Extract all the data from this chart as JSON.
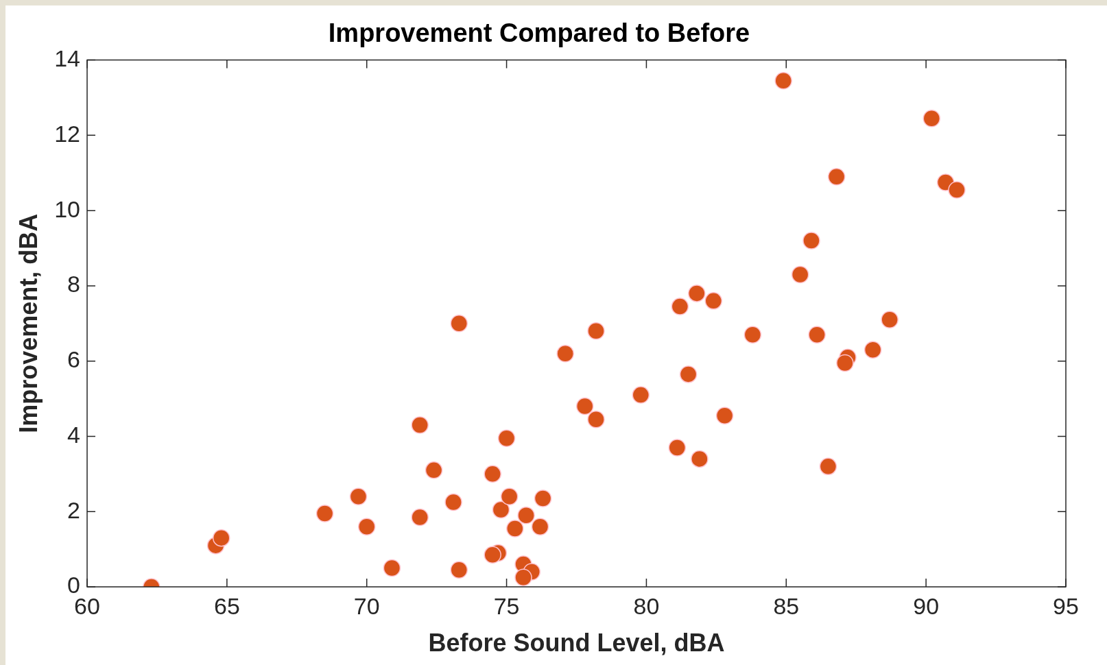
{
  "chart_data": {
    "type": "scatter",
    "title": "Improvement Compared to Before",
    "xlabel": "Before Sound Level, dBA",
    "ylabel": "Improvement, dBA",
    "x": [
      62.3,
      64.6,
      64.8,
      68.5,
      69.7,
      70.0,
      70.9,
      71.9,
      71.9,
      72.4,
      73.1,
      73.3,
      73.3,
      74.5,
      74.7,
      74.5,
      75.0,
      74.8,
      75.1,
      75.3,
      75.7,
      75.6,
      75.9,
      75.6,
      76.2,
      76.3,
      77.1,
      77.8,
      78.2,
      78.2,
      79.8,
      81.1,
      81.2,
      81.5,
      81.8,
      81.9,
      82.4,
      82.8,
      83.8,
      84.9,
      85.5,
      85.9,
      86.1,
      86.5,
      86.8,
      87.2,
      87.1,
      88.1,
      88.7,
      90.2,
      90.7,
      91.1
    ],
    "values": [
      0.0,
      1.1,
      1.3,
      1.95,
      2.4,
      1.6,
      0.5,
      4.3,
      1.85,
      3.1,
      2.25,
      7.0,
      0.45,
      3.0,
      0.9,
      0.85,
      3.95,
      2.05,
      2.4,
      1.55,
      1.9,
      0.6,
      0.4,
      0.25,
      1.6,
      2.35,
      6.2,
      4.8,
      4.45,
      6.8,
      5.1,
      3.7,
      7.45,
      5.65,
      7.8,
      3.4,
      7.6,
      4.55,
      6.7,
      13.45,
      8.3,
      9.2,
      6.7,
      3.2,
      10.9,
      6.1,
      5.95,
      6.3,
      7.1,
      12.45,
      10.75,
      10.55
    ],
    "color": "#d95319",
    "marker": "circle",
    "xlim": [
      60,
      95
    ],
    "xticks": [
      60,
      65,
      70,
      75,
      80,
      85,
      90,
      95
    ],
    "ylim": [
      0,
      14
    ],
    "yticks": [
      0,
      2,
      4,
      6,
      8,
      10,
      12,
      14
    ],
    "grid": false,
    "legend": false
  }
}
